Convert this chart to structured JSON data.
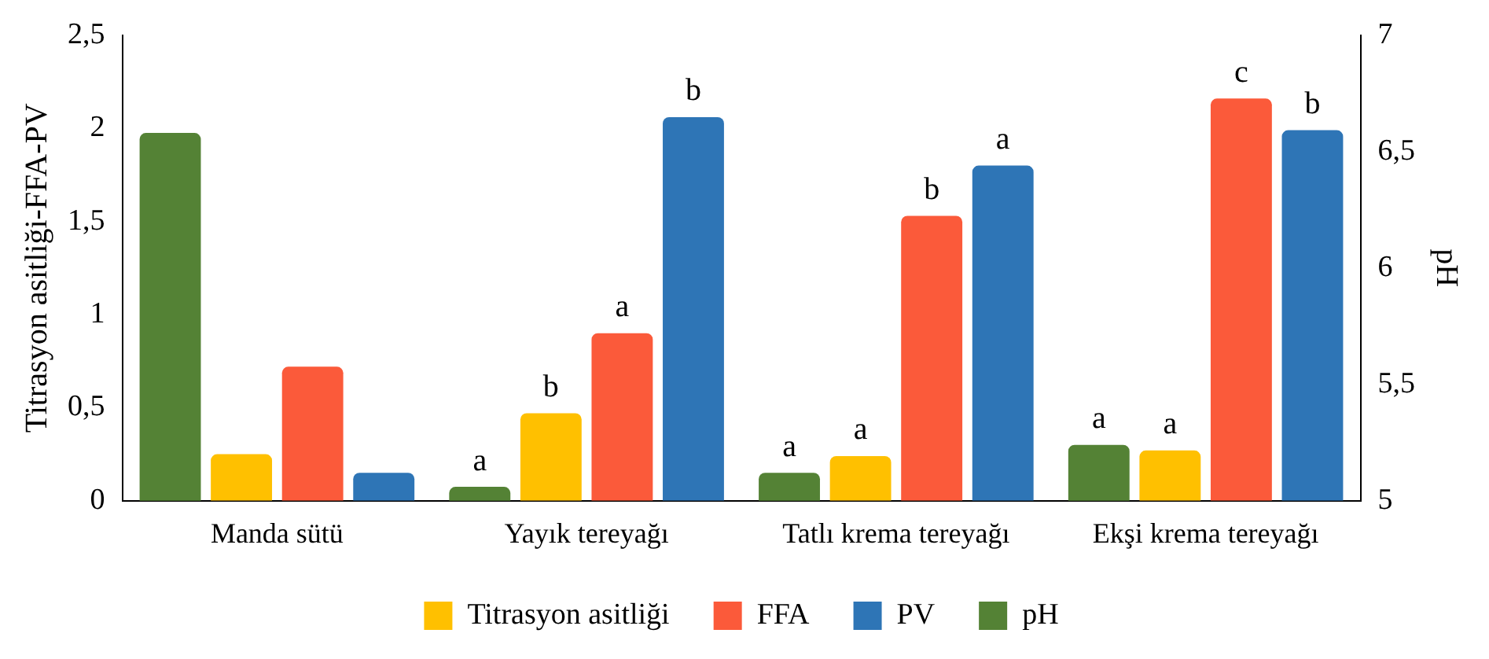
{
  "chart_data": {
    "type": "bar",
    "ylabel": "Titrasyon asitliği-FFA-PV",
    "y2label": "pH",
    "categories": [
      "Manda sütü",
      "Yayık tereyağı",
      "Tatlı krema tereyağı",
      "Ekşi krema tereyağı"
    ],
    "series": [
      {
        "name": "pH",
        "color": "#548235",
        "axis": "y2",
        "values": [
          6.58,
          5.06,
          5.12,
          5.24
        ],
        "value_labels": [
          null,
          "a",
          "a",
          "a"
        ]
      },
      {
        "name": "Titrasyon asitliği",
        "color": "#ffc000",
        "values": [
          0.25,
          0.47,
          0.24,
          0.27
        ],
        "value_labels": [
          null,
          "b",
          "a",
          "a"
        ]
      },
      {
        "name": "FFA",
        "color": "#fb5a3a",
        "values": [
          0.72,
          0.9,
          1.53,
          2.16
        ],
        "value_labels": [
          null,
          "a",
          "b",
          "c"
        ]
      },
      {
        "name": "PV",
        "color": "#2e75b6",
        "values": [
          0.15,
          2.06,
          1.8,
          1.99
        ],
        "value_labels": [
          null,
          "b",
          "a",
          "b"
        ]
      }
    ],
    "ylim": [
      0,
      2.5
    ],
    "yticks": [
      0,
      {
        "value": 0.5,
        "label": "0,5"
      },
      1,
      {
        "value": 1.5,
        "label": "1,5"
      },
      2,
      {
        "value": 2.5,
        "label": "2,5"
      }
    ],
    "y2lim": [
      5,
      7
    ],
    "y2ticks": [
      5,
      {
        "value": 5.5,
        "label": "5,5"
      },
      6,
      {
        "value": 6.5,
        "label": "6,5"
      },
      7
    ],
    "grid": false,
    "legend": "bottom"
  }
}
